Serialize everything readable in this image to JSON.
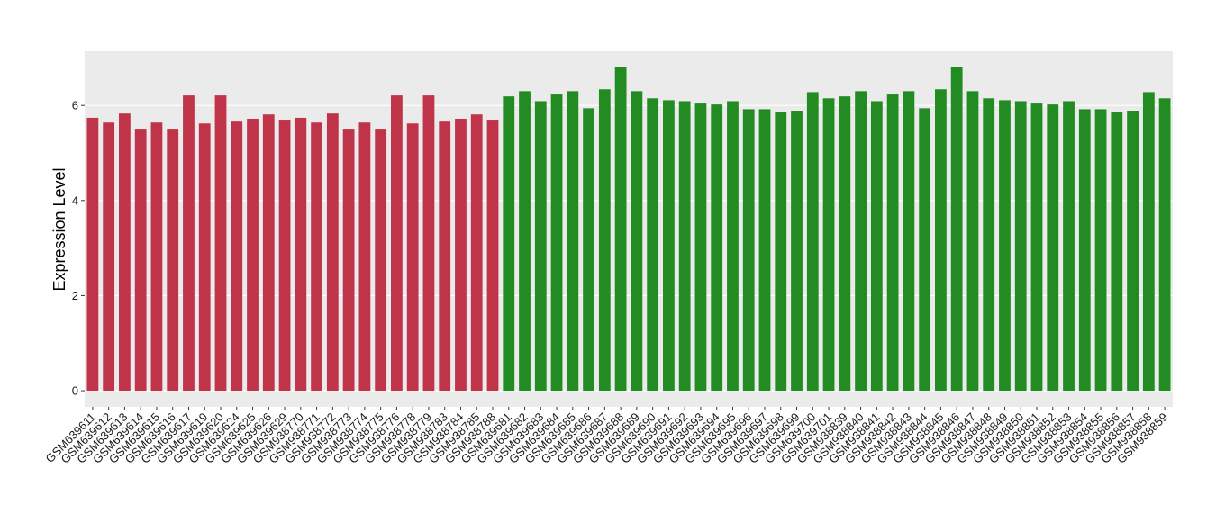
{
  "chart_data": {
    "type": "bar",
    "y_label": "Expression Level",
    "categories": [
      "GSM639611",
      "GSM639612",
      "GSM639613",
      "GSM639614",
      "GSM639615",
      "GSM639616",
      "GSM639617",
      "GSM639619",
      "GSM639620",
      "GSM639624",
      "GSM639625",
      "GSM639626",
      "GSM639629",
      "GSM938770",
      "GSM938771",
      "GSM938772",
      "GSM938773",
      "GSM938774",
      "GSM938775",
      "GSM938776",
      "GSM938778",
      "GSM938779",
      "GSM938783",
      "GSM938784",
      "GSM938785",
      "GSM938788",
      "GSM639681",
      "GSM639682",
      "GSM639683",
      "GSM639684",
      "GSM639685",
      "GSM639686",
      "GSM639687",
      "GSM639688",
      "GSM639689",
      "GSM639690",
      "GSM639691",
      "GSM639692",
      "GSM639693",
      "GSM639694",
      "GSM639695",
      "GSM639696",
      "GSM639697",
      "GSM639698",
      "GSM639699",
      "GSM639700",
      "GSM639701",
      "GSM938839",
      "GSM938840",
      "GSM938841",
      "GSM938842",
      "GSM938843",
      "GSM938844",
      "GSM938845",
      "GSM938846",
      "GSM938847",
      "GSM938848",
      "GSM938849",
      "GSM938850",
      "GSM938851",
      "GSM938852",
      "GSM938853",
      "GSM938854",
      "GSM938855",
      "GSM938856",
      "GSM938857",
      "GSM938858",
      "GSM938859"
    ],
    "values": [
      5.74,
      5.64,
      5.83,
      5.51,
      5.64,
      5.51,
      6.21,
      5.62,
      6.21,
      5.66,
      5.72,
      5.81,
      5.7,
      5.74,
      5.64,
      5.83,
      5.51,
      5.64,
      5.51,
      6.21,
      5.62,
      6.21,
      5.66,
      5.72,
      5.81,
      5.7,
      6.19,
      6.3,
      6.09,
      6.23,
      6.3,
      5.94,
      6.34,
      6.8,
      6.3,
      6.15,
      6.11,
      6.09,
      6.04,
      6.02,
      6.09,
      5.92,
      5.92,
      5.87,
      5.89,
      6.28,
      6.15,
      6.19,
      6.3,
      6.09,
      6.23,
      6.3,
      5.94,
      6.34,
      6.8,
      6.3,
      6.15,
      6.11,
      6.09,
      6.04,
      6.02,
      6.09,
      5.92,
      5.92,
      5.87,
      5.89,
      6.28,
      6.15
    ],
    "colors": [
      "#c0344a",
      "#c0344a",
      "#c0344a",
      "#c0344a",
      "#c0344a",
      "#c0344a",
      "#c0344a",
      "#c0344a",
      "#c0344a",
      "#c0344a",
      "#c0344a",
      "#c0344a",
      "#c0344a",
      "#c0344a",
      "#c0344a",
      "#c0344a",
      "#c0344a",
      "#c0344a",
      "#c0344a",
      "#c0344a",
      "#c0344a",
      "#c0344a",
      "#c0344a",
      "#c0344a",
      "#c0344a",
      "#c0344a",
      "#228b22",
      "#228b22",
      "#228b22",
      "#228b22",
      "#228b22",
      "#228b22",
      "#228b22",
      "#228b22",
      "#228b22",
      "#228b22",
      "#228b22",
      "#228b22",
      "#228b22",
      "#228b22",
      "#228b22",
      "#228b22",
      "#228b22",
      "#228b22",
      "#228b22",
      "#228b22",
      "#228b22",
      "#228b22",
      "#228b22",
      "#228b22",
      "#228b22",
      "#228b22",
      "#228b22",
      "#228b22",
      "#228b22",
      "#228b22",
      "#228b22",
      "#228b22",
      "#228b22",
      "#228b22",
      "#228b22",
      "#228b22",
      "#228b22",
      "#228b22",
      "#228b22",
      "#228b22",
      "#228b22",
      "#228b22"
    ],
    "ylim": [
      -0.34,
      7.14
    ],
    "yticks": [
      0,
      2,
      4,
      6
    ],
    "grid": true,
    "panel_color": "#ebebeb"
  }
}
